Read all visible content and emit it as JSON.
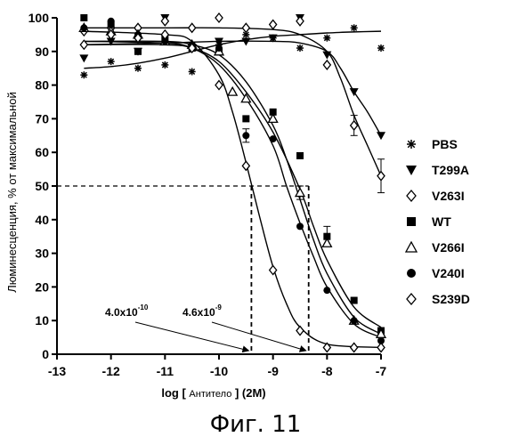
{
  "caption": "Фиг. 11",
  "chart_data": {
    "type": "scatter",
    "ylabel": "Люминесценция, % от максимальной",
    "xlabel_main": "log [ ",
    "xlabel_small": "Антитело",
    "xlabel_end": " ] (2M)",
    "xlim": [
      -13,
      -7
    ],
    "ylim": [
      0,
      100
    ],
    "xticks": [
      -13,
      -12,
      -11,
      -10,
      -9,
      -8,
      -7
    ],
    "yticks": [
      0,
      10,
      20,
      30,
      40,
      50,
      60,
      70,
      80,
      90,
      100
    ],
    "grid": false,
    "legend_position": "right",
    "series": [
      {
        "name": "PBS",
        "marker": "asterisk",
        "x": [
          -12.5,
          -12.0,
          -11.5,
          -11.0,
          -10.5,
          -10.0,
          -9.5,
          -9.0,
          -8.5,
          -8.0,
          -7.5,
          -7.0
        ],
        "y": [
          83,
          87,
          85,
          86,
          84,
          92,
          95,
          94,
          91,
          94,
          97,
          91
        ],
        "errors": [
          0,
          0,
          0,
          0,
          0,
          0,
          0,
          0,
          0,
          0,
          0,
          0
        ],
        "fit": [
          [
            -12.5,
            85
          ],
          [
            -12.0,
            85.5
          ],
          [
            -11.5,
            86.5
          ],
          [
            -11.0,
            88
          ],
          [
            -10.5,
            90
          ],
          [
            -10.0,
            92
          ],
          [
            -9.5,
            93.5
          ],
          [
            -9.0,
            94.5
          ],
          [
            -8.5,
            95
          ],
          [
            -8.0,
            95.5
          ],
          [
            -7.5,
            95.8
          ],
          [
            -7.0,
            96
          ]
        ]
      },
      {
        "name": "T299A",
        "marker": "triangle-down",
        "x": [
          -12.5,
          -12.0,
          -11.5,
          -11.0,
          -10.5,
          -10.0,
          -9.5,
          -9.0,
          -8.5,
          -8.0,
          -7.5,
          -7.0
        ],
        "y": [
          88,
          93,
          90,
          100,
          91,
          93,
          93,
          94,
          100,
          89,
          78,
          65
        ],
        "errors": [
          0,
          0,
          0,
          0,
          0,
          0,
          0,
          0,
          0,
          0,
          0,
          0
        ],
        "fit": [
          [
            -12.5,
            92
          ],
          [
            -11.0,
            92.5
          ],
          [
            -10.0,
            93
          ],
          [
            -9.0,
            93
          ],
          [
            -8.5,
            92.5
          ],
          [
            -8.0,
            90
          ],
          [
            -7.75,
            85
          ],
          [
            -7.5,
            78
          ],
          [
            -7.25,
            72
          ],
          [
            -7.0,
            65
          ]
        ]
      },
      {
        "name": "V263I",
        "marker": "diamond",
        "x": [
          -12.5,
          -12.0,
          -11.5,
          -11.0,
          -10.5,
          -10.0,
          -9.5,
          -9.0,
          -8.5,
          -8.0,
          -7.5,
          -7.0
        ],
        "y": [
          96,
          97,
          97,
          99,
          97,
          100,
          97,
          98,
          99,
          86,
          68,
          53
        ],
        "errors": [
          0,
          0,
          0,
          0,
          0,
          0,
          0,
          0,
          0,
          0,
          3,
          5
        ],
        "fit": [
          [
            -12.5,
            97
          ],
          [
            -11.0,
            97
          ],
          [
            -10.0,
            97
          ],
          [
            -9.0,
            96.5
          ],
          [
            -8.5,
            95
          ],
          [
            -8.0,
            90
          ],
          [
            -7.75,
            82
          ],
          [
            -7.5,
            71
          ],
          [
            -7.25,
            62
          ],
          [
            -7.0,
            53
          ]
        ]
      },
      {
        "name": "WT",
        "marker": "square",
        "x": [
          -12.5,
          -12.0,
          -11.5,
          -11.0,
          -10.5,
          -10.0,
          -9.5,
          -9.0,
          -8.5,
          -8.0,
          -7.5,
          -7.0
        ],
        "y": [
          100,
          98,
          90,
          94,
          91,
          90,
          70,
          72,
          59,
          35,
          16,
          7
        ],
        "errors": [
          0,
          0,
          0,
          0,
          0,
          0,
          0,
          0,
          0,
          3,
          0,
          0
        ],
        "fit": [
          [
            -12.5,
            92
          ],
          [
            -11.0,
            92
          ],
          [
            -10.5,
            91
          ],
          [
            -10.0,
            87
          ],
          [
            -9.5,
            78
          ],
          [
            -9.0,
            66
          ],
          [
            -8.5,
            49
          ],
          [
            -8.25,
            38
          ],
          [
            -8.0,
            28
          ],
          [
            -7.5,
            14
          ],
          [
            -7.0,
            8
          ]
        ]
      },
      {
        "name": "V266I",
        "marker": "triangle-up",
        "x": [
          -12.5,
          -12.0,
          -11.5,
          -11.0,
          -10.5,
          -10.0,
          -9.75,
          -9.5,
          -9.0,
          -8.5,
          -8.0,
          -7.5,
          -7.0
        ],
        "y": [
          97,
          96,
          95,
          93,
          92,
          90,
          78,
          76,
          70,
          48,
          33,
          10,
          6
        ],
        "errors": [
          0,
          0,
          0,
          0,
          0,
          0,
          0,
          0,
          0,
          2,
          0,
          0,
          0
        ],
        "fit": [
          [
            -12.5,
            93
          ],
          [
            -11.0,
            93
          ],
          [
            -10.5,
            92
          ],
          [
            -10.0,
            89
          ],
          [
            -9.5,
            81
          ],
          [
            -9.0,
            68
          ],
          [
            -8.75,
            58
          ],
          [
            -8.5,
            46
          ],
          [
            -8.25,
            34
          ],
          [
            -8.0,
            24
          ],
          [
            -7.5,
            11
          ],
          [
            -7.0,
            6
          ]
        ]
      },
      {
        "name": "V240I",
        "marker": "circle",
        "x": [
          -12.5,
          -12.0,
          -11.5,
          -11.0,
          -10.5,
          -10.0,
          -9.5,
          -9.0,
          -8.5,
          -8.0,
          -7.5,
          -7.0
        ],
        "y": [
          97,
          99,
          95,
          93,
          92,
          91,
          65,
          64,
          38,
          19,
          10,
          4
        ],
        "errors": [
          0,
          0,
          0,
          0,
          0,
          0,
          2,
          0,
          0,
          0,
          0,
          0
        ],
        "fit": [
          [
            -12.5,
            93
          ],
          [
            -11.0,
            92.5
          ],
          [
            -10.5,
            91
          ],
          [
            -10.0,
            86
          ],
          [
            -9.5,
            76
          ],
          [
            -9.0,
            62
          ],
          [
            -8.75,
            50
          ],
          [
            -8.5,
            39
          ],
          [
            -8.25,
            29
          ],
          [
            -8.0,
            20
          ],
          [
            -7.5,
            9
          ],
          [
            -7.0,
            5
          ]
        ]
      },
      {
        "name": "S239D",
        "marker": "diamond",
        "x": [
          -12.5,
          -12.0,
          -11.5,
          -11.0,
          -10.5,
          -10.0,
          -9.5,
          -9.0,
          -8.5,
          -8.0,
          -7.5,
          -7.0
        ],
        "y": [
          92,
          95,
          94,
          95,
          91,
          80,
          56,
          25,
          7,
          2,
          2,
          2
        ],
        "errors": [
          0,
          0,
          0,
          0,
          0,
          0,
          0,
          0,
          0,
          0,
          0,
          0
        ],
        "fit": [
          [
            -12.5,
            96
          ],
          [
            -11.0,
            95
          ],
          [
            -10.5,
            93
          ],
          [
            -10.0,
            83
          ],
          [
            -9.75,
            72
          ],
          [
            -9.5,
            57
          ],
          [
            -9.25,
            41
          ],
          [
            -9.0,
            26
          ],
          [
            -8.75,
            15
          ],
          [
            -8.5,
            8
          ],
          [
            -8.0,
            3
          ],
          [
            -7.0,
            2
          ]
        ]
      }
    ],
    "annotations": {
      "ec50_line_y": 50,
      "ec50_low": {
        "x": -9.4,
        "mantissa": "4.0x10",
        "exponent": "-10"
      },
      "ec50_high": {
        "x": -8.34,
        "mantissa": "4.6x10",
        "exponent": "-9"
      }
    }
  }
}
